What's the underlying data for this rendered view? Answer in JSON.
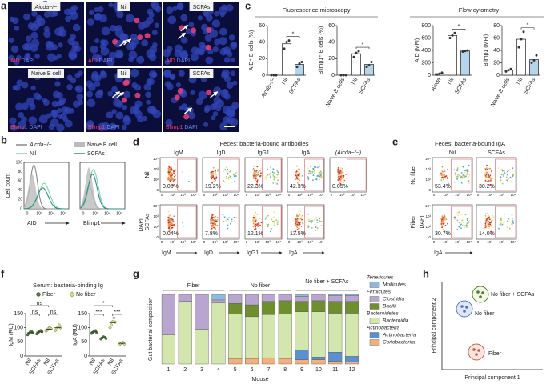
{
  "a": {
    "letter": "a",
    "top": {
      "labels": [
        "Aicda−/−",
        "Nil",
        "SCFAs"
      ],
      "stain": [
        "AID",
        "DAPI"
      ]
    },
    "bottom": {
      "labels": [
        "Naive B cell",
        "Nil",
        "SCFAs"
      ],
      "stain": [
        "Blimp1",
        "DAPI"
      ]
    }
  },
  "b": {
    "letter": "b",
    "legend": [
      "Aicda−/−",
      "Naive B cell",
      "Nil",
      "SCFAs"
    ],
    "ylabel": "Cell count",
    "yticks": [
      "100",
      "80",
      "60",
      "40",
      "20",
      "0"
    ],
    "xticks": [
      "0",
      "10³",
      "10⁴",
      "10⁵"
    ],
    "xlabels": [
      "AID",
      "Blimp1"
    ]
  },
  "c": {
    "letter": "c",
    "groups": [
      "Fluorescence microscopy",
      "Flow cytometry"
    ],
    "charts": [
      {
        "type": "bar",
        "ylabel": "AID⁺ B cells (%)",
        "categories": [
          "Aicda−/−",
          "Nil",
          "SCFAs"
        ],
        "values": [
          0,
          38,
          13
        ],
        "points": [
          [
            0,
            0,
            0
          ],
          [
            32,
            40,
            42
          ],
          [
            10,
            14,
            16
          ]
        ],
        "colors": [
          "#ffffff",
          "#ffffff",
          "#b6d4ea"
        ],
        "ylim": [
          0,
          60
        ],
        "yticks": [
          0,
          20,
          40,
          60
        ],
        "significance": "*"
      },
      {
        "type": "bar",
        "ylabel": "Blimp1⁺ B cells (%)",
        "categories": [
          "Naive B cells",
          "Nil",
          "SCFAs"
        ],
        "values": [
          0,
          26,
          13
        ],
        "points": [
          [
            0,
            0,
            0
          ],
          [
            22,
            27,
            29
          ],
          [
            10,
            12,
            16
          ]
        ],
        "colors": [
          "#ffffff",
          "#ffffff",
          "#b6d4ea"
        ],
        "ylim": [
          0,
          60
        ],
        "yticks": [
          0,
          20,
          40,
          60
        ],
        "significance": "*"
      },
      {
        "type": "bar",
        "ylabel": "AID (MFI)",
        "categories": [
          "Aicda",
          "Nil",
          "SCFAs"
        ],
        "values": [
          25,
          640,
          390
        ],
        "points": [
          [
            10,
            25,
            40
          ],
          [
            600,
            640,
            680
          ],
          [
            380,
            390,
            400
          ]
        ],
        "colors": [
          "#ffffff",
          "#ffffff",
          "#b6d4ea"
        ],
        "ylim": [
          0,
          800
        ],
        "yticks": [
          0,
          200,
          400,
          600,
          800
        ],
        "significance": "*"
      },
      {
        "type": "bar",
        "ylabel": "Blimp1 (MFI)",
        "categories": [
          "Naive B cells",
          "Nil",
          "SCFAs"
        ],
        "values": [
          8,
          58,
          25
        ],
        "points": [
          [
            6,
            8,
            10
          ],
          [
            45,
            58,
            70
          ],
          [
            20,
            24,
            32
          ]
        ],
        "colors": [
          "#ffffff",
          "#ffffff",
          "#b6d4ea"
        ],
        "ylim": [
          0,
          80
        ],
        "yticks": [
          0,
          20,
          40,
          60,
          80
        ],
        "significance": "*"
      }
    ]
  },
  "d": {
    "letter": "d",
    "title": "Feces: bacteria-bound antibodies",
    "columns": [
      "IgM",
      "IgD",
      "IgG1",
      "IgA",
      "(Aicda−/−)"
    ],
    "rows": [
      "Nil",
      "SCFAs"
    ],
    "percent": [
      [
        "0.05%",
        "19.2%",
        "22.3%",
        "42.3%",
        "0.05%"
      ],
      [
        "0.04%",
        "7.8%",
        "12.1%",
        "13.5%"
      ]
    ],
    "xlabels": [
      "IgM",
      "IgD",
      "IgG1",
      "IgA"
    ],
    "ylabel": "DAPI",
    "ticks": [
      "0",
      "10²",
      "10³",
      "10⁴"
    ]
  },
  "e": {
    "letter": "e",
    "title": "Feces: bacteria-bound IgA",
    "columns": [
      "Nil",
      "SCFAs"
    ],
    "rows": [
      "No fiber",
      "Fiber"
    ],
    "percent": [
      [
        "53.4%",
        "30.2%"
      ],
      [
        "30.7%",
        "14.0%"
      ]
    ],
    "xlabel": "IgA",
    "ylabel": "DAPI",
    "ticks": [
      "0",
      "10²",
      "10³",
      "10⁴"
    ]
  },
  "f": {
    "letter": "f",
    "title": "Serum: bacteria-binding Ig",
    "series": [
      {
        "name": "Fiber",
        "color": "#4e7d35"
      },
      {
        "name": "No fiber",
        "color": "#d4e07a"
      }
    ],
    "charts": [
      {
        "type": "dot",
        "ylabel": "IgM (RU)",
        "categories": [
          "Nil",
          "SCFAs",
          "Nil",
          "SCFAs"
        ],
        "values": [
          82,
          85,
          95,
          100
        ],
        "points": [
          [
            75,
            80,
            85,
            88,
            82
          ],
          [
            78,
            82,
            88,
            90,
            86
          ],
          [
            88,
            92,
            98,
            100,
            96
          ],
          [
            90,
            95,
            102,
            110,
            100
          ]
        ],
        "ylim": [
          0,
          150
        ],
        "yticks": [
          0,
          50,
          100,
          150
        ],
        "significance": [
          "ns",
          "ns",
          "ns"
        ]
      },
      {
        "type": "dot",
        "ylabel": "IgA (RU)",
        "categories": [
          "Nil",
          "SCFAs",
          "Nil",
          "SCFAs"
        ],
        "values": [
          85,
          65,
          118,
          45
        ],
        "points": [
          [
            80,
            84,
            88,
            90,
            82
          ],
          [
            60,
            64,
            68,
            66,
            62
          ],
          [
            100,
            110,
            122,
            135,
            120
          ],
          [
            40,
            44,
            46,
            48,
            42
          ]
        ],
        "ylim": [
          0,
          150
        ],
        "yticks": [
          0,
          50,
          100,
          150
        ],
        "significance": [
          "*",
          "***",
          "***"
        ]
      }
    ]
  },
  "g": {
    "letter": "g",
    "type": "stacked-bar",
    "ylabel": "Gut bacterial composition",
    "xlabel": "Mouse",
    "groups": [
      "Fiber",
      "No fiber",
      "No fiber + SCFAs"
    ],
    "categories": [
      "1",
      "2",
      "3",
      "4",
      "5",
      "6",
      "7",
      "8",
      "9",
      "10",
      "11",
      "12"
    ],
    "ylim": [
      0,
      100
    ],
    "phyla": [
      {
        "name": "Tenericutes",
        "series": [
          {
            "name": "Mollicutes",
            "color": "#8fb8de",
            "values": [
              0,
              0,
              0,
              8,
              0,
              0,
              0,
              0,
              3,
              0,
              2,
              2
            ]
          }
        ]
      },
      {
        "name": "Firmicutes",
        "series": [
          {
            "name": "Clostridia",
            "color": "#b9a6d0",
            "values": [
              58,
              10,
              50,
              4,
              13,
              15,
              10,
              9,
              7,
              9,
              8,
              8
            ]
          },
          {
            "name": "Bacilli",
            "color": "#6f8f2f",
            "values": [
              0,
              0,
              0,
              0,
              15,
              17,
              19,
              19,
              15,
              16,
              17,
              17
            ]
          }
        ]
      },
      {
        "name": "Bacteroidetes",
        "series": [
          {
            "name": "Bacteroidia",
            "color": "#d2e6ad",
            "values": [
              42,
              90,
              50,
              88,
              64,
              60,
              62,
              64,
              55,
              65,
              56,
              62
            ]
          }
        ]
      },
      {
        "name": "Actinobacteria",
        "series": [
          {
            "name": "Actinobacteria",
            "color": "#5b8fd0",
            "values": [
              0,
              0,
              0,
              0,
              0,
              0,
              0,
              0,
              14,
              4,
              13,
              8
            ]
          },
          {
            "name": "Coriobacteriia",
            "color": "#f4b07c",
            "values": [
              0,
              0,
              0,
              0,
              8,
              8,
              9,
              8,
              6,
              6,
              4,
              3
            ]
          }
        ]
      }
    ]
  },
  "h": {
    "letter": "h",
    "xlabel": "Principal component 1",
    "ylabel": "Principal component 2",
    "clusters": [
      "No fiber + SCFAs",
      "No fiber",
      "Fiber"
    ]
  }
}
